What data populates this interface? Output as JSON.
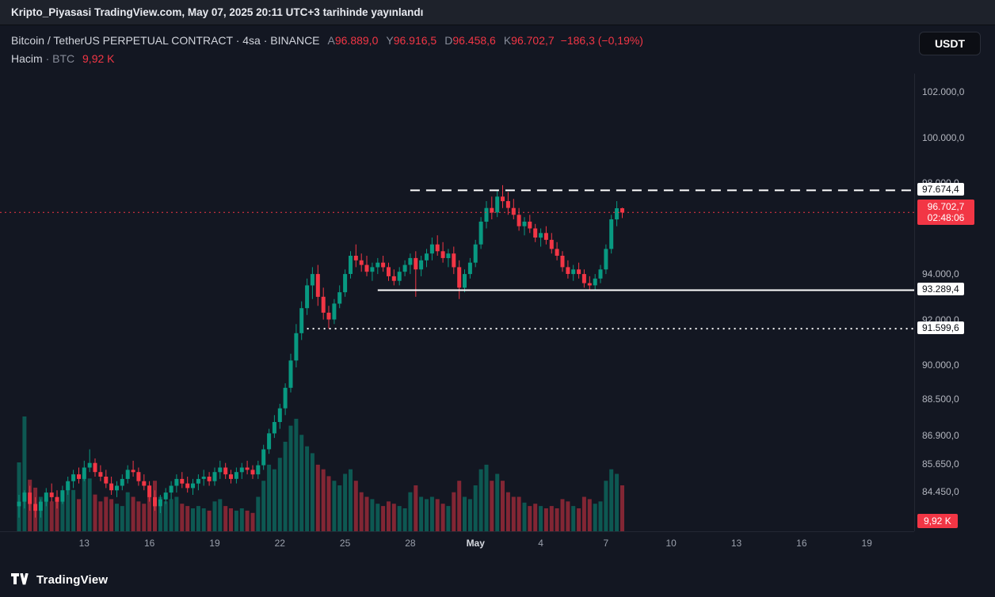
{
  "banner": {
    "text": "Kripto_Piyasasi TradingView.com, May 07, 2025 20:11 UTC+3 tarihinde yayınlandı"
  },
  "header": {
    "title": "Bitcoin / TetherUS PERPETUAL CONTRACT · 4sa · BINANCE",
    "open_label": "A",
    "open": "96.889,0",
    "high_label": "Y",
    "high": "96.916,5",
    "low_label": "D",
    "low": "96.458,6",
    "close_label": "K",
    "close": "96.702,7",
    "change": "−186,3 (−0,19%)",
    "volume_row": {
      "name": "Hacim",
      "sep": "·",
      "unit": "BTC",
      "value": "9,92 K"
    },
    "currency": "USDT"
  },
  "footer": {
    "brand": "TradingView"
  },
  "colors": {
    "up": "#089981",
    "down": "#f23645",
    "level_line": "#ffffff",
    "axis_text": "#b2b5be"
  },
  "chart_data": {
    "type": "candlestick",
    "title": "Bitcoin / TetherUS PERPETUAL CONTRACT",
    "exchange": "BINANCE",
    "interval": "4sa",
    "quote_currency": "USDT",
    "price_axis": {
      "min": 82700,
      "max": 102800,
      "ticks": [
        {
          "value": 102000,
          "label": "102.000,0"
        },
        {
          "value": 100000,
          "label": "100.000,0"
        },
        {
          "value": 98000,
          "label": "98.000,0"
        },
        {
          "value": 94000,
          "label": "94.000,0"
        },
        {
          "value": 92000,
          "label": "92.000,0"
        },
        {
          "value": 90000,
          "label": "90.000,0"
        },
        {
          "value": 88500,
          "label": "88.500,0"
        },
        {
          "value": 86900,
          "label": "86.900,0"
        },
        {
          "value": 85650,
          "label": "85.650,0"
        },
        {
          "value": 84450,
          "label": "84.450,0"
        }
      ]
    },
    "time_axis": {
      "ticks": [
        {
          "label": "13",
          "i": 12
        },
        {
          "label": "16",
          "i": 24
        },
        {
          "label": "19",
          "i": 36
        },
        {
          "label": "22",
          "i": 48
        },
        {
          "label": "25",
          "i": 60
        },
        {
          "label": "28",
          "i": 72
        },
        {
          "label": "May",
          "i": 84,
          "major": true
        },
        {
          "label": "4",
          "i": 96
        },
        {
          "label": "7",
          "i": 108
        },
        {
          "label": "10",
          "i": 120
        },
        {
          "label": "13",
          "i": 132
        },
        {
          "label": "16",
          "i": 144
        },
        {
          "label": "19",
          "i": 156
        }
      ]
    },
    "levels": [
      {
        "value": 97674.4,
        "label": "97.674,4",
        "style": "dashed",
        "from_i": 72
      },
      {
        "value": 93289.4,
        "label": "93.289,4",
        "style": "solid",
        "from_i": 66
      },
      {
        "value": 91599.6,
        "label": "91.599,6",
        "style": "dotted",
        "from_i": 53
      }
    ],
    "last_price": {
      "value": 96702.7,
      "label": "96.702,7",
      "countdown": "02:48:06"
    },
    "last_volume_label": "9,92 K",
    "candles": [
      [
        83800,
        84300,
        83300,
        84000,
        60
      ],
      [
        84000,
        84500,
        83700,
        84400,
        100
      ],
      [
        84400,
        84700,
        83600,
        83900,
        45
      ],
      [
        83900,
        84200,
        83300,
        83600,
        38
      ],
      [
        83600,
        84100,
        83300,
        84000,
        30
      ],
      [
        84000,
        84600,
        83800,
        84400,
        28
      ],
      [
        84400,
        84800,
        84000,
        84200,
        26
      ],
      [
        84200,
        84500,
        83700,
        84000,
        30
      ],
      [
        84000,
        84700,
        83900,
        84500,
        34
      ],
      [
        84500,
        85100,
        84300,
        84900,
        40
      ],
      [
        84900,
        85400,
        84600,
        85200,
        36
      ],
      [
        85200,
        85500,
        84800,
        85000,
        28
      ],
      [
        85000,
        85800,
        84900,
        85500,
        50
      ],
      [
        85500,
        86300,
        85300,
        85700,
        46
      ],
      [
        85700,
        85900,
        85100,
        85300,
        32
      ],
      [
        85300,
        85600,
        84900,
        85100,
        26
      ],
      [
        85100,
        85400,
        84600,
        84800,
        30
      ],
      [
        84800,
        85100,
        84300,
        84500,
        28
      ],
      [
        84500,
        84900,
        84200,
        84700,
        24
      ],
      [
        84700,
        85200,
        84500,
        85000,
        22
      ],
      [
        85000,
        85600,
        84800,
        85400,
        34
      ],
      [
        85400,
        85800,
        85100,
        85300,
        30
      ],
      [
        85300,
        85500,
        84700,
        84900,
        26
      ],
      [
        84900,
        85200,
        84500,
        84700,
        24
      ],
      [
        84700,
        84900,
        84000,
        84200,
        40
      ],
      [
        84200,
        84500,
        83600,
        83800,
        44
      ],
      [
        83800,
        84300,
        83500,
        84100,
        30
      ],
      [
        84100,
        84600,
        83900,
        84400,
        26
      ],
      [
        84400,
        84900,
        84100,
        84700,
        28
      ],
      [
        84700,
        85200,
        84400,
        85000,
        30
      ],
      [
        85000,
        85300,
        84600,
        84800,
        24
      ],
      [
        84800,
        85100,
        84400,
        84600,
        22
      ],
      [
        84600,
        85000,
        84300,
        84800,
        20
      ],
      [
        84800,
        85200,
        84500,
        85000,
        22
      ],
      [
        85000,
        85400,
        84700,
        85100,
        20
      ],
      [
        85100,
        85300,
        84700,
        84900,
        18
      ],
      [
        84900,
        85500,
        84700,
        85300,
        26
      ],
      [
        85300,
        85800,
        85000,
        85500,
        28
      ],
      [
        85500,
        85700,
        85000,
        85200,
        22
      ],
      [
        85200,
        85400,
        84800,
        85000,
        20
      ],
      [
        85000,
        85500,
        84800,
        85300,
        18
      ],
      [
        85300,
        85700,
        85000,
        85500,
        20
      ],
      [
        85500,
        85800,
        85200,
        85400,
        18
      ],
      [
        85400,
        85600,
        85000,
        85200,
        16
      ],
      [
        85200,
        85800,
        85000,
        85600,
        30
      ],
      [
        85600,
        86500,
        85400,
        86300,
        44
      ],
      [
        86300,
        87200,
        86100,
        87000,
        58
      ],
      [
        87000,
        87800,
        86800,
        87500,
        54
      ],
      [
        87500,
        88300,
        87200,
        88100,
        64
      ],
      [
        88100,
        89200,
        87800,
        89000,
        78
      ],
      [
        89000,
        90500,
        88800,
        90200,
        92
      ],
      [
        90200,
        91800,
        89900,
        91400,
        98
      ],
      [
        91400,
        92800,
        91100,
        92500,
        84
      ],
      [
        92500,
        93800,
        92200,
        93500,
        74
      ],
      [
        93500,
        94300,
        92900,
        94000,
        68
      ],
      [
        94000,
        94400,
        92600,
        93000,
        58
      ],
      [
        93000,
        93400,
        92000,
        92300,
        54
      ],
      [
        92300,
        92600,
        91600,
        92000,
        48
      ],
      [
        92000,
        92900,
        91800,
        92700,
        44
      ],
      [
        92700,
        93500,
        92500,
        93200,
        40
      ],
      [
        93200,
        94200,
        93000,
        94000,
        50
      ],
      [
        94000,
        95000,
        93800,
        94800,
        54
      ],
      [
        94800,
        95300,
        94300,
        94600,
        44
      ],
      [
        94600,
        94900,
        94100,
        94400,
        34
      ],
      [
        94400,
        94800,
        93900,
        94100,
        30
      ],
      [
        94100,
        94500,
        93700,
        94300,
        28
      ],
      [
        94300,
        94700,
        94000,
        94500,
        24
      ],
      [
        94500,
        94800,
        94100,
        94300,
        22
      ],
      [
        94300,
        94500,
        93700,
        93900,
        26
      ],
      [
        93900,
        94200,
        93500,
        93700,
        24
      ],
      [
        93700,
        94300,
        93500,
        94100,
        22
      ],
      [
        94100,
        94600,
        93900,
        94400,
        20
      ],
      [
        94400,
        94900,
        94000,
        94700,
        34
      ],
      [
        94700,
        95000,
        93000,
        94200,
        40
      ],
      [
        94200,
        94800,
        93900,
        94600,
        30
      ],
      [
        94600,
        95100,
        94300,
        94900,
        28
      ],
      [
        94900,
        95600,
        94600,
        95300,
        30
      ],
      [
        95300,
        95700,
        94800,
        95000,
        28
      ],
      [
        95000,
        95400,
        94500,
        94700,
        24
      ],
      [
        94700,
        95100,
        94300,
        94900,
        22
      ],
      [
        94900,
        95200,
        94000,
        94300,
        34
      ],
      [
        94300,
        94600,
        92900,
        93400,
        44
      ],
      [
        93400,
        94200,
        93200,
        94000,
        30
      ],
      [
        94000,
        94700,
        93800,
        94500,
        28
      ],
      [
        94500,
        95500,
        94300,
        95300,
        40
      ],
      [
        95300,
        96500,
        95100,
        96300,
        54
      ],
      [
        96300,
        97200,
        96000,
        96900,
        58
      ],
      [
        96900,
        97400,
        96400,
        96700,
        44
      ],
      [
        96700,
        97700,
        96500,
        97400,
        50
      ],
      [
        97400,
        97900,
        96900,
        97200,
        44
      ],
      [
        97200,
        97600,
        96600,
        96900,
        34
      ],
      [
        96900,
        97300,
        96400,
        96600,
        30
      ],
      [
        96600,
        96900,
        95900,
        96100,
        30
      ],
      [
        96100,
        96500,
        95700,
        96300,
        25
      ],
      [
        96300,
        96600,
        95800,
        96000,
        22
      ],
      [
        96000,
        96200,
        95400,
        95600,
        24
      ],
      [
        95600,
        96000,
        95200,
        95800,
        22
      ],
      [
        95800,
        96100,
        95300,
        95500,
        20
      ],
      [
        95500,
        95800,
        94900,
        95100,
        22
      ],
      [
        95100,
        95400,
        94600,
        94800,
        20
      ],
      [
        94800,
        95000,
        94100,
        94300,
        28
      ],
      [
        94300,
        94600,
        93800,
        94000,
        26
      ],
      [
        94000,
        94400,
        93700,
        94200,
        22
      ],
      [
        94200,
        94500,
        93800,
        94000,
        20
      ],
      [
        94000,
        94200,
        93400,
        93600,
        30
      ],
      [
        93600,
        93900,
        93300,
        93500,
        28
      ],
      [
        93500,
        94000,
        93300,
        93800,
        24
      ],
      [
        93800,
        94400,
        93600,
        94200,
        26
      ],
      [
        94200,
        95300,
        94000,
        95100,
        44
      ],
      [
        95100,
        96600,
        94900,
        96400,
        54
      ],
      [
        96400,
        97200,
        96100,
        96889,
        50
      ],
      [
        96889,
        96916.5,
        96458.6,
        96702.7,
        40
      ]
    ]
  }
}
